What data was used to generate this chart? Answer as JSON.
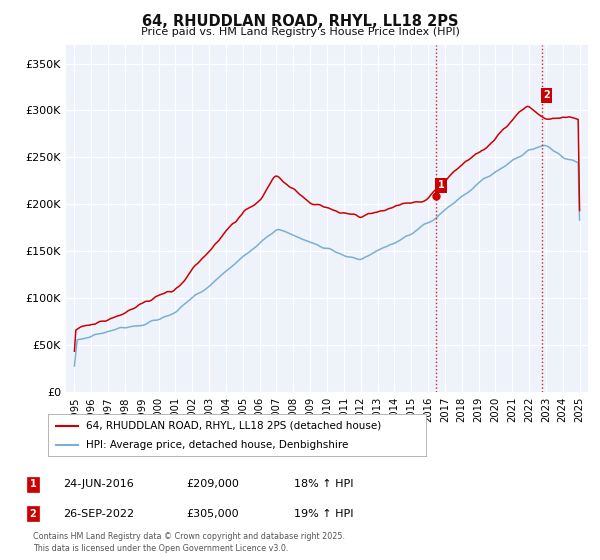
{
  "title": "64, RHUDDLAN ROAD, RHYL, LL18 2PS",
  "subtitle": "Price paid vs. HM Land Registry's House Price Index (HPI)",
  "ylim": [
    0,
    370000
  ],
  "yticks": [
    0,
    50000,
    100000,
    150000,
    200000,
    250000,
    300000,
    350000
  ],
  "xlim_start": 1994.5,
  "xlim_end": 2025.5,
  "line1_color": "#cc0000",
  "line2_color": "#7bafd4",
  "marker1_date": 2016.48,
  "marker1_price": 209000,
  "marker2_date": 2022.74,
  "marker2_price": 305000,
  "legend_line1": "64, RHUDDLAN ROAD, RHYL, LL18 2PS (detached house)",
  "legend_line2": "HPI: Average price, detached house, Denbighshire",
  "ann1_date": "24-JUN-2016",
  "ann1_price": "£209,000",
  "ann1_hpi": "18% ↑ HPI",
  "ann2_date": "26-SEP-2022",
  "ann2_price": "£305,000",
  "ann2_hpi": "19% ↑ HPI",
  "footer": "Contains HM Land Registry data © Crown copyright and database right 2025.\nThis data is licensed under the Open Government Licence v3.0.",
  "background_color": "#eef2fb",
  "grid_color": "#ffffff",
  "xticks": [
    1995,
    1996,
    1997,
    1998,
    1999,
    2000,
    2001,
    2002,
    2003,
    2004,
    2005,
    2006,
    2007,
    2008,
    2009,
    2010,
    2011,
    2012,
    2013,
    2014,
    2015,
    2016,
    2017,
    2018,
    2019,
    2020,
    2021,
    2022,
    2023,
    2024,
    2025
  ]
}
